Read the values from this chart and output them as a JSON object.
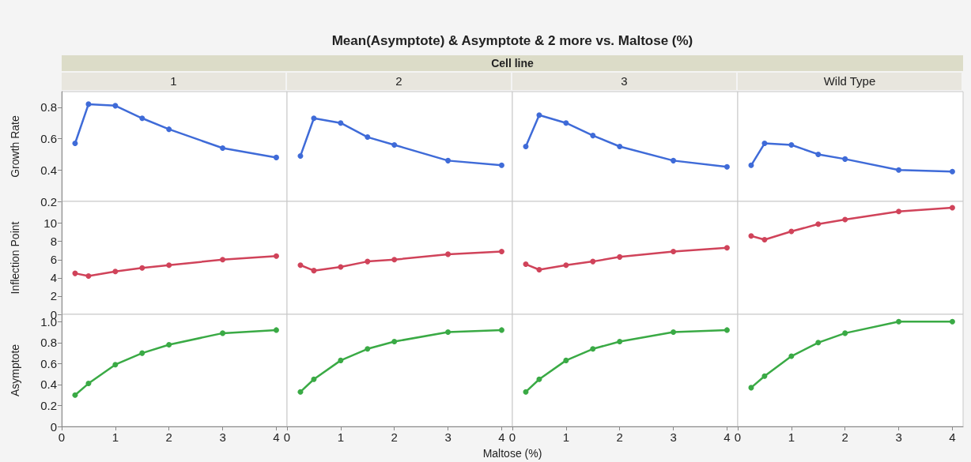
{
  "chart_data": [
    {
      "type": "line",
      "subtitle": "1",
      "ylabel": "Growth Rate",
      "x": [
        0.25,
        0.5,
        1,
        1.5,
        2,
        3,
        4
      ],
      "values": [
        0.57,
        0.82,
        0.81,
        0.73,
        0.66,
        0.54,
        0.48
      ],
      "color": "#3f6bd8",
      "marker": "circle",
      "xlim": [
        0,
        4.2
      ],
      "ylim": [
        0.2,
        0.9
      ],
      "yticks": [
        0.2,
        0.4,
        0.6,
        0.8
      ],
      "tick_labels": "y"
    },
    {
      "type": "line",
      "title": "Mean(Asymptote) & Asymptote & 2 more vs. Maltose (%)",
      "annotations": [
        "Cell line"
      ],
      "subtitle": "2",
      "x": [
        0.25,
        0.5,
        1,
        1.5,
        2,
        3,
        4
      ],
      "values": [
        0.49,
        0.73,
        0.7,
        0.61,
        0.56,
        0.46,
        0.43
      ],
      "color": "#3f6bd8",
      "marker": "circle",
      "xlim": [
        0,
        4.2
      ],
      "ylim": [
        0.2,
        0.9
      ],
      "tick_labels": false
    },
    {
      "type": "line",
      "subtitle": "3",
      "x": [
        0.25,
        0.5,
        1,
        1.5,
        2,
        3,
        4
      ],
      "values": [
        0.55,
        0.75,
        0.7,
        0.62,
        0.55,
        0.46,
        0.42
      ],
      "color": "#3f6bd8",
      "marker": "circle",
      "xlim": [
        0,
        4.2
      ],
      "ylim": [
        0.2,
        0.9
      ],
      "tick_labels": false
    },
    {
      "type": "line",
      "subtitle": "Wild Type",
      "x": [
        0.25,
        0.5,
        1,
        1.5,
        2,
        3,
        4
      ],
      "values": [
        0.43,
        0.57,
        0.56,
        0.5,
        0.47,
        0.4,
        0.39
      ],
      "color": "#3f6bd8",
      "marker": "circle",
      "xlim": [
        0,
        4.2
      ],
      "ylim": [
        0.2,
        0.9
      ],
      "tick_labels": false
    },
    {
      "type": "line",
      "ylabel": "Inflection Point",
      "x": [
        0.25,
        0.5,
        1,
        1.5,
        2,
        3,
        4
      ],
      "values": [
        4.5,
        4.2,
        4.7,
        5.1,
        5.4,
        6.0,
        6.4
      ],
      "color": "#d0435a",
      "marker": "circle",
      "xlim": [
        0,
        4.2
      ],
      "ylim": [
        0,
        12.4
      ],
      "yticks": [
        0,
        2,
        4,
        6,
        8,
        10
      ],
      "tick_labels": "y"
    },
    {
      "type": "line",
      "x": [
        0.25,
        0.5,
        1,
        1.5,
        2,
        3,
        4
      ],
      "values": [
        5.4,
        4.8,
        5.2,
        5.8,
        6.0,
        6.6,
        6.9
      ],
      "color": "#d0435a",
      "marker": "circle",
      "xlim": [
        0,
        4.2
      ],
      "ylim": [
        0,
        12.4
      ],
      "tick_labels": false
    },
    {
      "type": "line",
      "x": [
        0.25,
        0.5,
        1,
        1.5,
        2,
        3,
        4
      ],
      "values": [
        5.5,
        4.9,
        5.4,
        5.8,
        6.3,
        6.9,
        7.3
      ],
      "color": "#d0435a",
      "marker": "circle",
      "xlim": [
        0,
        4.2
      ],
      "ylim": [
        0,
        12.4
      ],
      "tick_labels": false
    },
    {
      "type": "line",
      "x": [
        0.25,
        0.5,
        1,
        1.5,
        2,
        3,
        4
      ],
      "values": [
        8.6,
        8.2,
        9.1,
        9.9,
        10.4,
        11.3,
        11.7
      ],
      "color": "#d0435a",
      "marker": "circle",
      "xlim": [
        0,
        4.2
      ],
      "ylim": [
        0,
        12.4
      ],
      "tick_labels": false
    },
    {
      "type": "line",
      "ylabel": "Asymptote",
      "x": [
        0.25,
        0.5,
        1,
        1.5,
        2,
        3,
        4
      ],
      "values": [
        0.3,
        0.41,
        0.59,
        0.7,
        0.78,
        0.89,
        0.92
      ],
      "color": "#3aaa45",
      "marker": "circle",
      "xlim": [
        0,
        4.2
      ],
      "ylim": [
        0,
        1.07
      ],
      "xticks": [
        0,
        1,
        2,
        3,
        4
      ],
      "yticks": [
        0,
        0.2,
        0.4,
        0.6,
        0.8,
        {
          "value": 1,
          "label": "1.0"
        }
      ]
    },
    {
      "type": "line",
      "xlabel": "Maltose (%)",
      "x": [
        0.25,
        0.5,
        1,
        1.5,
        2,
        3,
        4
      ],
      "values": [
        0.33,
        0.45,
        0.63,
        0.74,
        0.81,
        0.9,
        0.92
      ],
      "color": "#3aaa45",
      "marker": "circle",
      "xlim": [
        0,
        4.2
      ],
      "ylim": [
        0,
        1.07
      ],
      "xticks": [
        0,
        1,
        2,
        3,
        4
      ],
      "tick_labels": "x"
    },
    {
      "type": "line",
      "x": [
        0.25,
        0.5,
        1,
        1.5,
        2,
        3,
        4
      ],
      "values": [
        0.33,
        0.45,
        0.63,
        0.74,
        0.81,
        0.9,
        0.92
      ],
      "color": "#3aaa45",
      "marker": "circle",
      "xlim": [
        0,
        4.2
      ],
      "ylim": [
        0,
        1.07
      ],
      "xticks": [
        0,
        1,
        2,
        3,
        4
      ],
      "tick_labels": "x"
    },
    {
      "type": "line",
      "x": [
        0.25,
        0.5,
        1,
        1.5,
        2,
        3,
        4
      ],
      "values": [
        0.37,
        0.48,
        0.67,
        0.8,
        0.89,
        1.0,
        1.0
      ],
      "color": "#3aaa45",
      "marker": "circle",
      "xlim": [
        0,
        4.2
      ],
      "ylim": [
        0,
        1.07
      ],
      "xticks": [
        0,
        1,
        2,
        3,
        4
      ],
      "tick_labels": "x"
    }
  ]
}
